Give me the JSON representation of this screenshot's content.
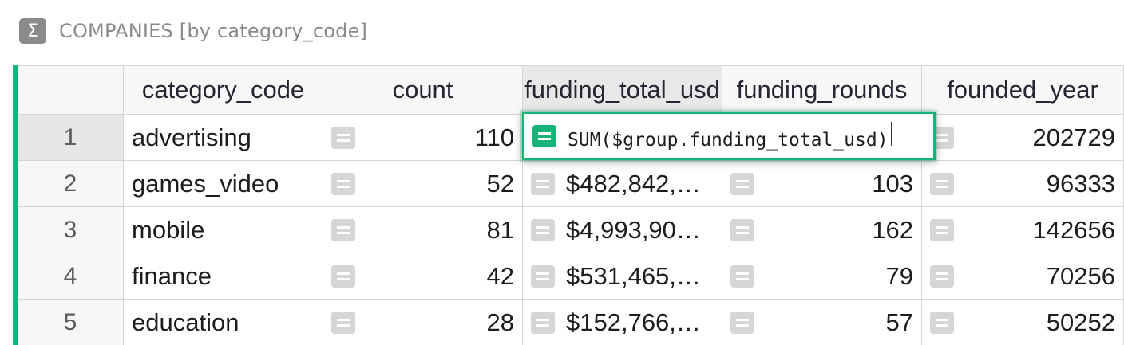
{
  "section": {
    "title": "COMPANIES [by category_code]",
    "icon": "sigma-icon",
    "icon_glyph": "Σ"
  },
  "columns": [
    {
      "label": "category_code"
    },
    {
      "label": "count"
    },
    {
      "label": "funding_total_usd"
    },
    {
      "label": "funding_rounds"
    },
    {
      "label": "founded_year"
    }
  ],
  "rows": [
    {
      "num": "1",
      "category_code": "advertising",
      "count": "110",
      "funding_total_usd": "",
      "funding_rounds": "",
      "founded_year": "202729"
    },
    {
      "num": "2",
      "category_code": "games_video",
      "count": "52",
      "funding_total_usd": "$482,842,…",
      "funding_rounds": "103",
      "founded_year": "96333"
    },
    {
      "num": "3",
      "category_code": "mobile",
      "count": "81",
      "funding_total_usd": "$4,993,90…",
      "funding_rounds": "162",
      "founded_year": "142656"
    },
    {
      "num": "4",
      "category_code": "finance",
      "count": "42",
      "funding_total_usd": "$531,465,…",
      "funding_rounds": "79",
      "founded_year": "70256"
    },
    {
      "num": "5",
      "category_code": "education",
      "count": "28",
      "funding_total_usd": "$152,766,…",
      "funding_rounds": "57",
      "founded_year": "50252"
    }
  ],
  "editor": {
    "formula": "SUM($group.funding_total_usd)"
  },
  "colors": {
    "accent": "#16b378",
    "formula_badge": "#d6d6d6"
  }
}
